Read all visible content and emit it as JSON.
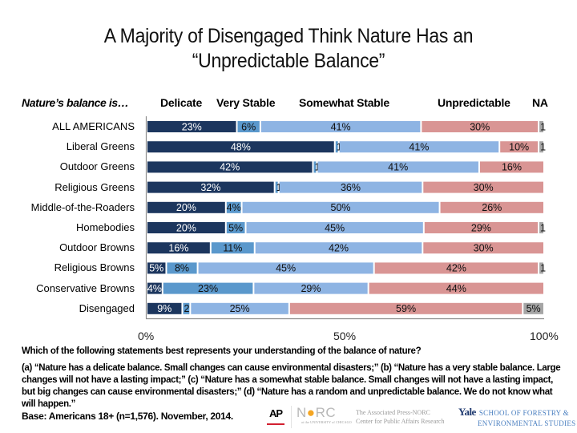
{
  "chart_data": {
    "type": "bar",
    "orientation": "horizontal",
    "stacked": true,
    "title_lines": [
      "A Majority of Disengaged Think Nature Has an",
      "“Unpredictable Balance”"
    ],
    "row_header": "Nature’s balance is…",
    "categories": [
      "ALL AMERICANS",
      "Liberal Greens",
      "Outdoor Greens",
      "Religious Greens",
      "Middle-of-the-Roaders",
      "Homebodies",
      "Outdoor Browns",
      "Religious Browns",
      "Conservative Browns",
      "Disengaged"
    ],
    "series": [
      {
        "name": "Delicate",
        "color": "#1c365e",
        "label_color": "#ffffff",
        "values": [
          23,
          48,
          42,
          32,
          20,
          20,
          16,
          5,
          4,
          9
        ],
        "labels": [
          "23%",
          "48%",
          "42%",
          "32%",
          "20%",
          "20%",
          "16%",
          "5%",
          "4%",
          "9%"
        ]
      },
      {
        "name": "Very Stable",
        "color": "#5a98cc",
        "label_color": "#111111",
        "values": [
          6,
          1,
          1,
          1,
          4,
          5,
          11,
          8,
          23,
          2
        ],
        "labels": [
          "6%",
          "1",
          "1",
          "1",
          "4%",
          "5%",
          "11%",
          "8%",
          "23%",
          "2"
        ]
      },
      {
        "name": "Somewhat Stable",
        "color": "#8eb4e3",
        "label_color": "#111111",
        "values": [
          41,
          41,
          41,
          36,
          50,
          45,
          42,
          45,
          29,
          25
        ],
        "labels": [
          "41%",
          "41%",
          "41%",
          "36%",
          "50%",
          "45%",
          "42%",
          "45%",
          "29%",
          "25%"
        ]
      },
      {
        "name": "Unpredictable",
        "color": "#d99594",
        "label_color": "#111111",
        "values": [
          30,
          10,
          16,
          30,
          26,
          29,
          30,
          42,
          44,
          59
        ],
        "labels": [
          "30%",
          "10%",
          "16%",
          "30%",
          "26%",
          "29%",
          "30%",
          "42%",
          "44%",
          "59%"
        ]
      },
      {
        "name": "NA",
        "color": "#a5a5a5",
        "label_color": "#111111",
        "values": [
          1,
          1,
          0,
          0,
          0,
          1,
          0,
          1,
          0,
          5
        ],
        "labels": [
          "1",
          "1",
          "",
          "",
          "",
          "1",
          "",
          "1",
          "",
          "5%"
        ]
      }
    ],
    "xlim": [
      0,
      100
    ],
    "x_ticks": [
      "0%",
      "50%",
      "100%"
    ],
    "grid": false,
    "legend_placement": "top (column headers)"
  },
  "footer": {
    "question": "Which of the following statements best represents your understanding of the balance of nature?",
    "options": "(a) “Nature has a delicate balance. Small changes can cause environmental disasters;” (b) “Nature has a very stable balance. Large changes will not have a lasting impact;” (c) “Nature has a somewhat stable balance. Small changes will not have a lasting impact, but big changes can cause environmental disasters;” (d) “Nature has a random and unpredictable balance. We do not know what will happen.”",
    "base": "Base: Americans 18+ (n=1,576). November, 2014."
  },
  "logos": {
    "ap": "AP",
    "norc_n": "N",
    "norc_o": "O",
    "norc_rc": "RC",
    "norc_sub": "at the UNIVERSITY of CHICAGO",
    "apnorc_line1": "The Associated Press-NORC",
    "apnorc_line2": "Center for Public Affairs Research",
    "yale_word": "Yale",
    "yale_line1": "SCHOOL OF FORESTRY &",
    "yale_line2": "ENVIRONMENTAL STUDIES"
  }
}
